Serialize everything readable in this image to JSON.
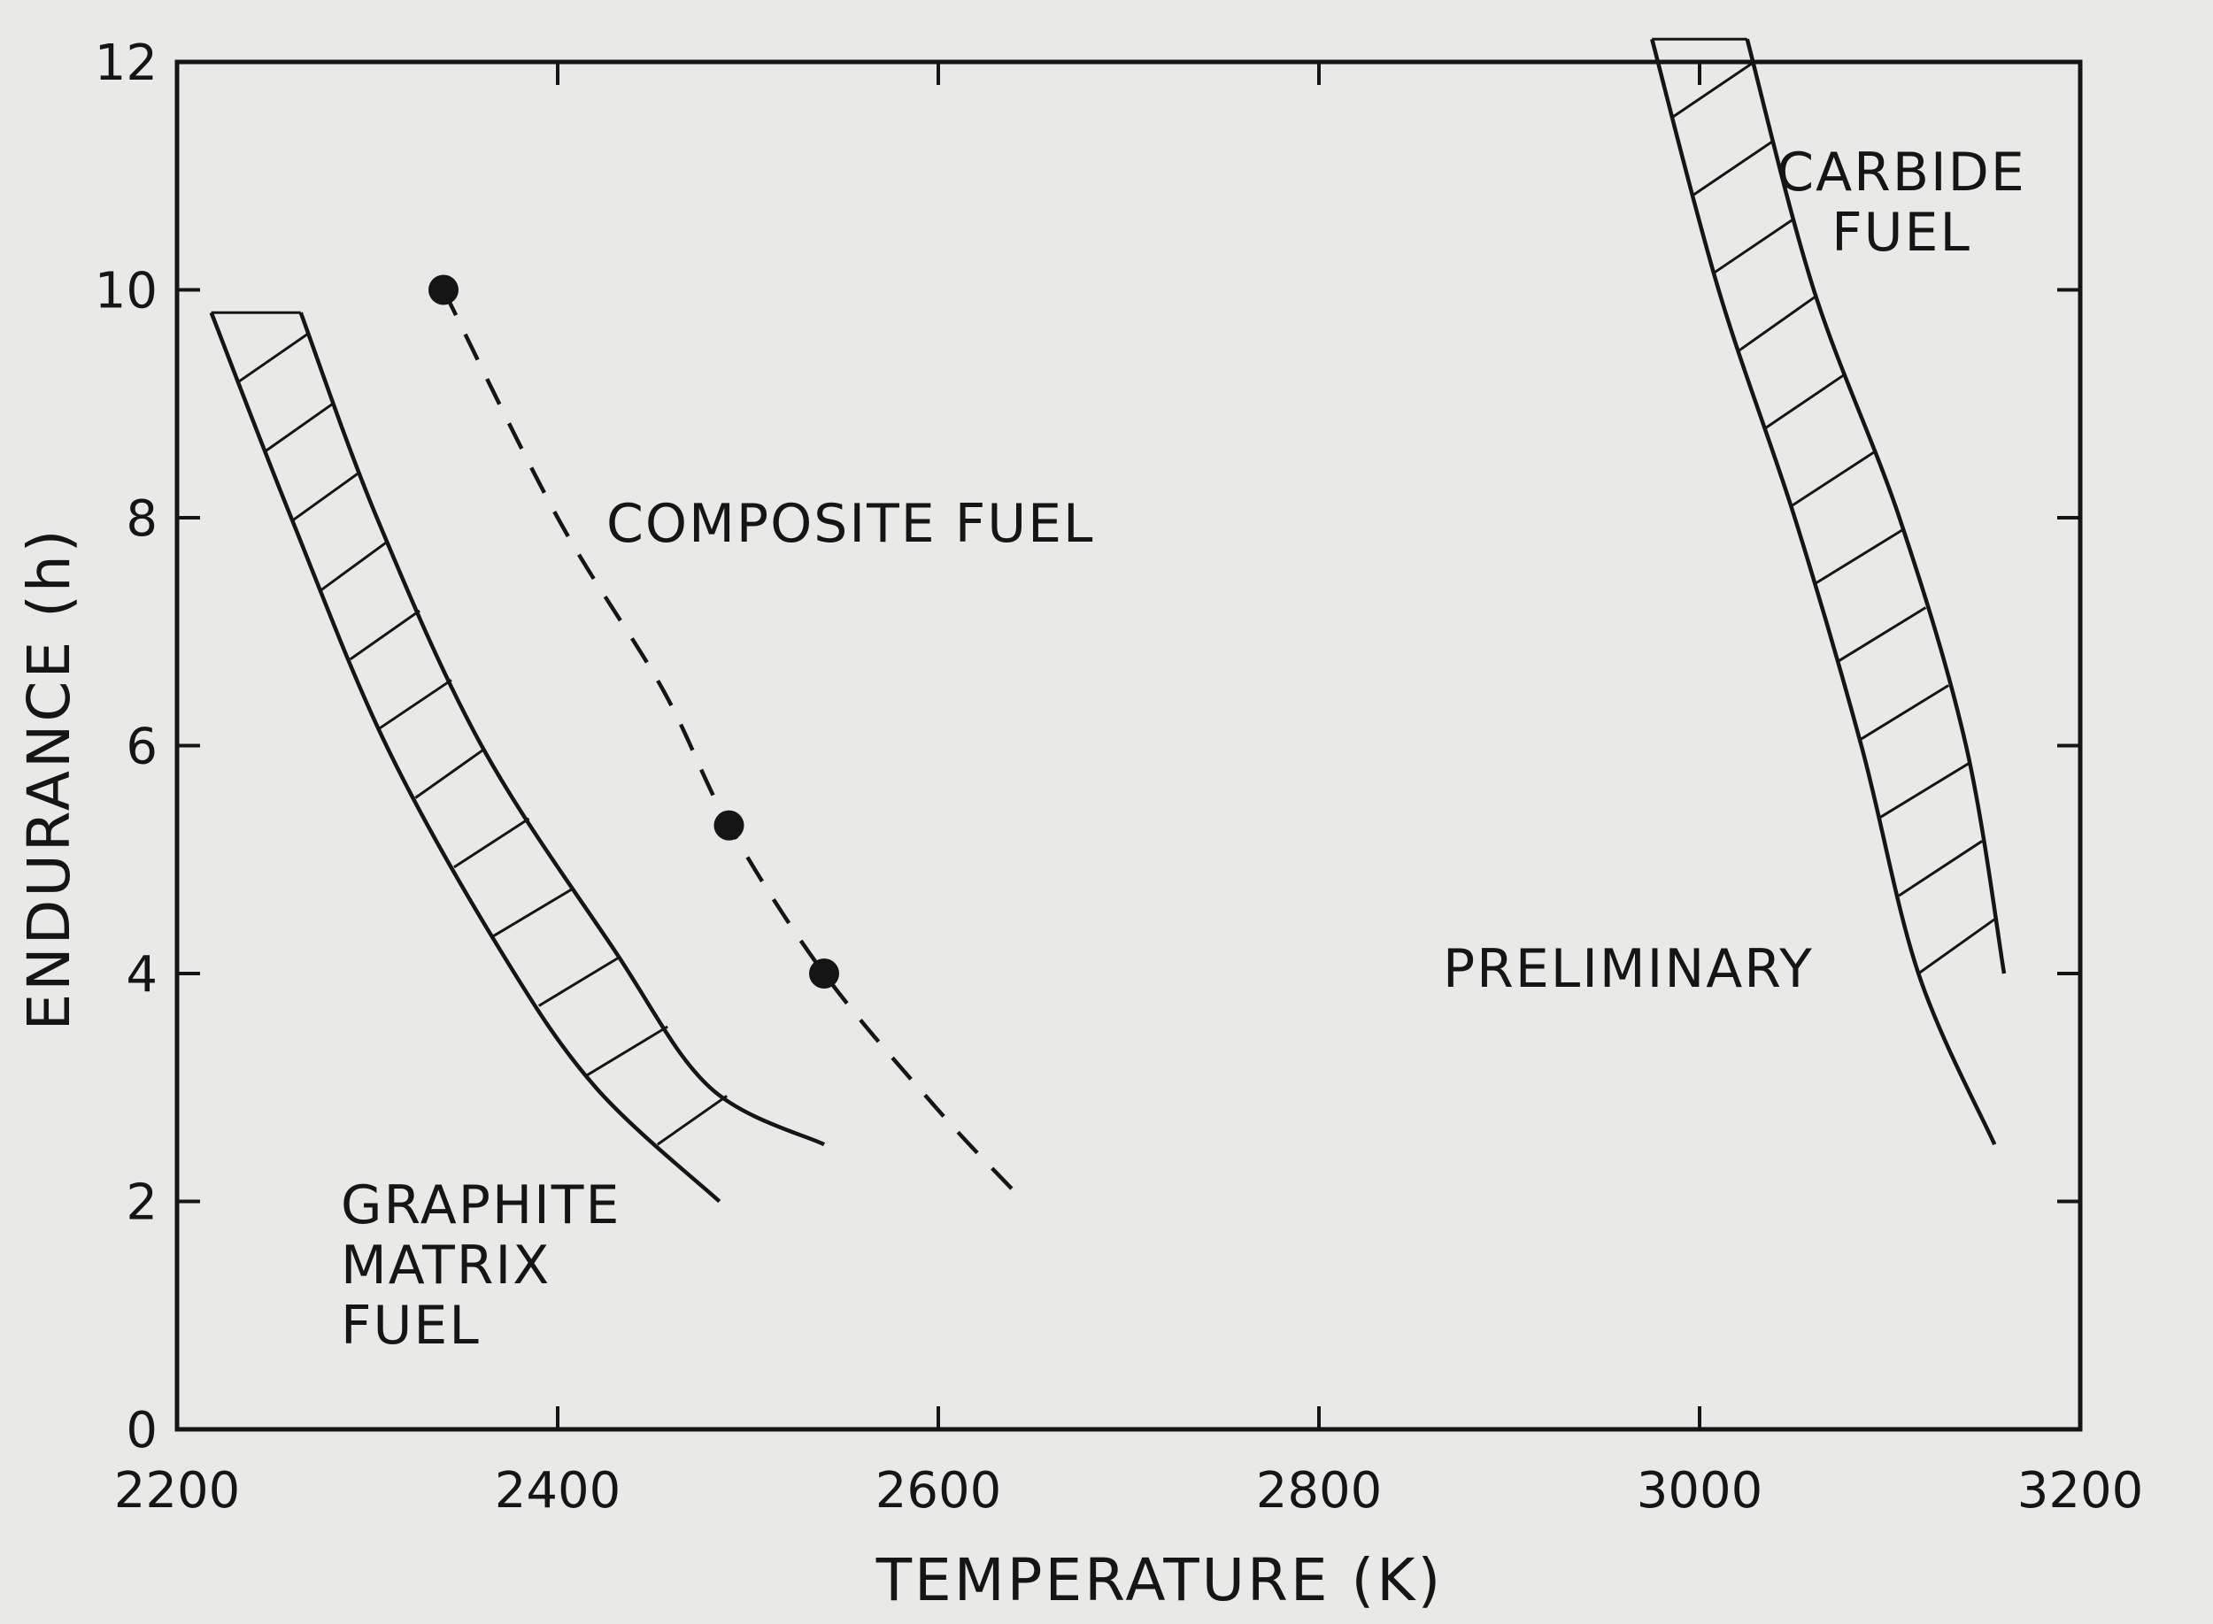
{
  "chart_data": {
    "type": "line",
    "xlabel": "TEMPERATURE (K)",
    "ylabel": "ENDURANCE (h)",
    "xlim": [
      2200,
      3200
    ],
    "ylim": [
      0,
      12
    ],
    "x_ticks": [
      2200,
      2400,
      2600,
      2800,
      3000,
      3200
    ],
    "y_ticks": [
      0,
      2,
      4,
      6,
      8,
      10,
      12
    ],
    "grid": false,
    "bands": [
      {
        "label": "GRAPHITE MATRIX FUEL",
        "lower": [
          [
            2218,
            9.8
          ],
          [
            2260,
            8.0
          ],
          [
            2310,
            6.0
          ],
          [
            2370,
            4.2
          ],
          [
            2420,
            3.0
          ],
          [
            2485,
            2.0
          ]
        ],
        "upper": [
          [
            2265,
            9.8
          ],
          [
            2305,
            8.0
          ],
          [
            2360,
            6.0
          ],
          [
            2430,
            4.2
          ],
          [
            2480,
            3.0
          ],
          [
            2540,
            2.5
          ]
        ]
      },
      {
        "label": "CARBIDE FUEL",
        "lower": [
          [
            2975,
            12.2
          ],
          [
            3010,
            10.0
          ],
          [
            3050,
            8.0
          ],
          [
            3085,
            6.0
          ],
          [
            3115,
            4.0
          ],
          [
            3155,
            2.5
          ]
        ],
        "upper": [
          [
            3025,
            12.2
          ],
          [
            3060,
            10.0
          ],
          [
            3105,
            8.0
          ],
          [
            3140,
            6.0
          ],
          [
            3160,
            4.0
          ]
        ]
      }
    ],
    "series": [
      {
        "name": "COMPOSITE FUEL",
        "style": "dashed",
        "points": [
          [
            2340,
            10.0
          ],
          [
            2490,
            5.3
          ],
          [
            2540,
            4.0
          ]
        ],
        "line": [
          [
            2340,
            10.0
          ],
          [
            2400,
            8.0
          ],
          [
            2455,
            6.5
          ],
          [
            2490,
            5.3
          ],
          [
            2540,
            4.0
          ],
          [
            2600,
            2.8
          ],
          [
            2645,
            2.0
          ]
        ]
      }
    ],
    "annotations": {
      "composite": "COMPOSITE FUEL",
      "graphite": [
        "GRAPHITE",
        "MATRIX",
        "FUEL"
      ],
      "carbide": [
        "CARBIDE",
        "FUEL"
      ],
      "preliminary": "PRELIMINARY"
    }
  }
}
